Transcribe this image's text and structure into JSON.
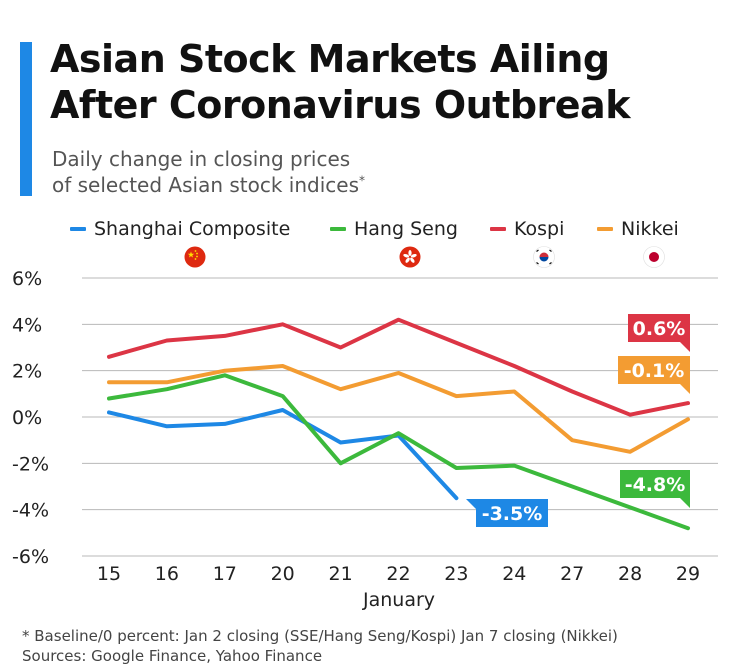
{
  "title_line1": "Asian Stock Markets Ailing",
  "title_line2": "After Coronavirus Outbreak",
  "subtitle_line1": "Daily change in closing prices",
  "subtitle_line2": "of selected Asian stock indices",
  "subtitle_mark": "*",
  "footnote": "* Baseline/0 percent: Jan 2 closing (SSE/Hang Seng/Kospi) Jan 7 closing (Nikkei)",
  "sources": "Sources: Google Finance, Yahoo Finance",
  "chart_data": {
    "type": "line",
    "categories": [
      "15",
      "16",
      "17",
      "20",
      "21",
      "22",
      "23",
      "24",
      "27",
      "28",
      "29"
    ],
    "xlabel": "January",
    "ylabel": "",
    "ylim": [
      -6,
      6
    ],
    "yticks": [
      6,
      4,
      2,
      0,
      -2,
      -4,
      -6
    ],
    "ytick_labels": [
      "6%",
      "4%",
      "2%",
      "0%",
      "-2%",
      "-4%",
      "-6%"
    ],
    "grid": true,
    "legend_position": "top",
    "series": [
      {
        "name": "Shanghai Composite",
        "color": "#1e88e5",
        "flag": "china-flag-icon",
        "values": [
          0.2,
          -0.4,
          -0.3,
          0.3,
          -1.1,
          -0.8,
          -3.5,
          null,
          null,
          null,
          null
        ],
        "end_label": "-3.5%"
      },
      {
        "name": "Hang Seng",
        "color": "#3cb93c",
        "flag": "hong-kong-flag-icon",
        "values": [
          0.8,
          1.2,
          1.8,
          0.9,
          -2.0,
          -0.7,
          -2.2,
          -2.1,
          -3.0,
          -3.9,
          -4.8
        ],
        "end_label": "-4.8%"
      },
      {
        "name": "Kospi",
        "color": "#dc3545",
        "flag": "south-korea-flag-icon",
        "values": [
          2.6,
          3.3,
          3.5,
          4.0,
          3.0,
          4.2,
          3.2,
          2.2,
          1.1,
          0.1,
          0.6
        ],
        "end_label": "0.6%"
      },
      {
        "name": "Nikkei",
        "color": "#f39c32",
        "flag": "japan-flag-icon",
        "values": [
          1.5,
          1.5,
          2.0,
          2.2,
          1.2,
          1.9,
          0.9,
          1.1,
          -1.0,
          -1.5,
          -0.1
        ],
        "end_label": "-0.1%"
      }
    ]
  }
}
